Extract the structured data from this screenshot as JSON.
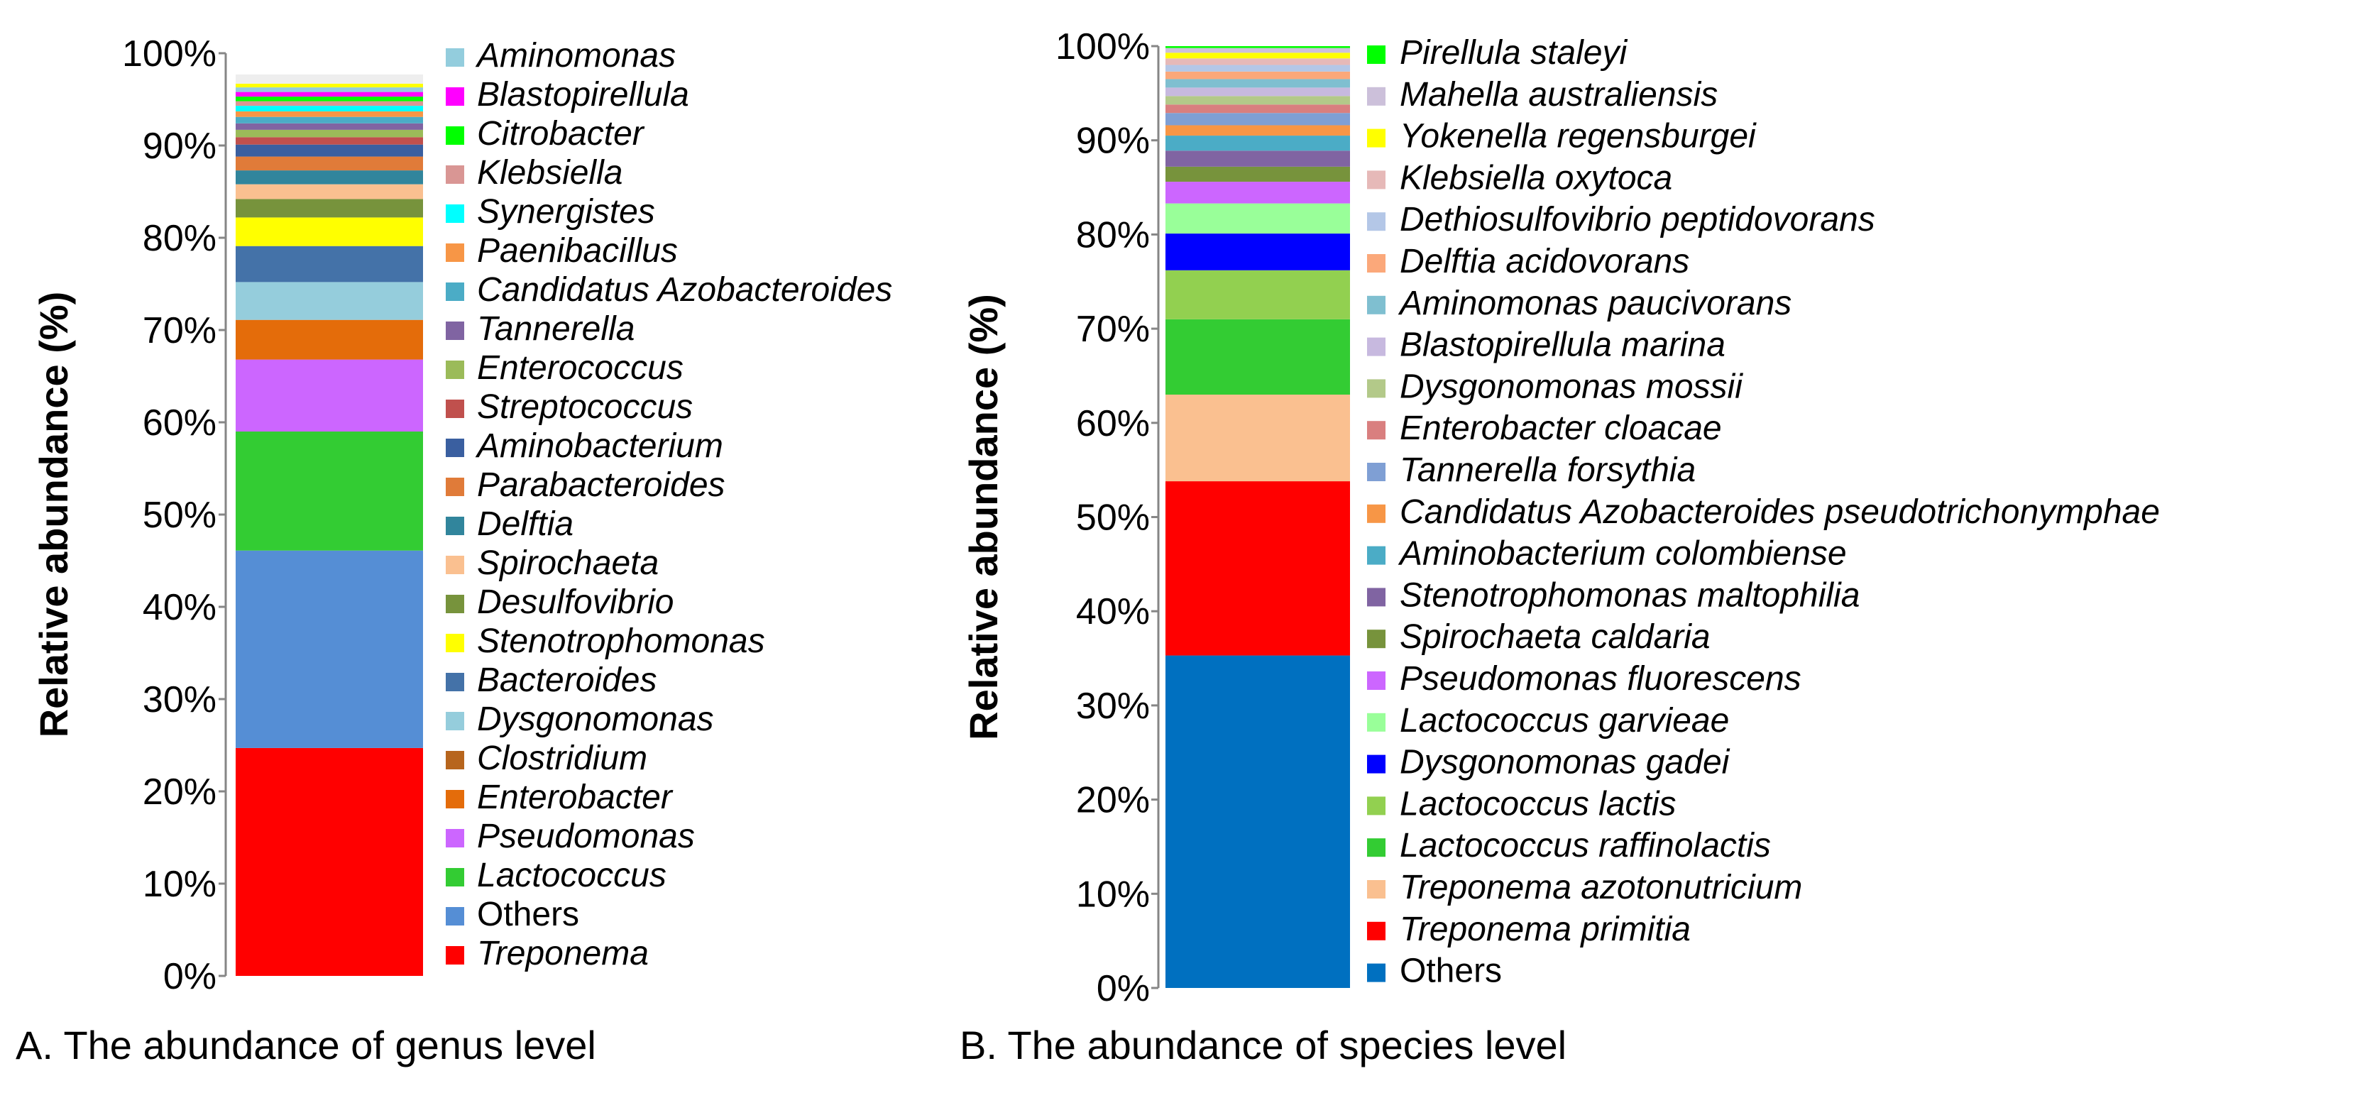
{
  "chart_data": [
    {
      "type": "bar",
      "stacked": true,
      "caption": "A. The abundance of genus level",
      "ylabel": "Relative abundance (%)",
      "ylim": [
        0,
        100
      ],
      "yticks": [
        "0%",
        "10%",
        "20%",
        "30%",
        "40%",
        "50%",
        "60%",
        "70%",
        "80%",
        "90%",
        "100%"
      ],
      "legend_position": "right",
      "series": [
        {
          "name": "Treponema",
          "value": 24.7,
          "color": "#ff0000",
          "italic": true
        },
        {
          "name": "Others",
          "value": 21.4,
          "color": "#558ed5",
          "italic": false
        },
        {
          "name": "Lactococcus",
          "value": 12.9,
          "color": "#33cc33",
          "italic": true
        },
        {
          "name": "Pseudomonas",
          "value": 7.8,
          "color": "#cc66ff",
          "italic": true
        },
        {
          "name": "Enterobacter",
          "value": 4.3,
          "color": "#e46c0a",
          "italic": true
        },
        {
          "name": "Clostridium",
          "value": 0.0,
          "color": "#b7651d",
          "italic": true
        },
        {
          "name": "Dysgonomonas",
          "value": 4.1,
          "color": "#95cddc",
          "italic": true
        },
        {
          "name": "Bacteroides",
          "value": 3.9,
          "color": "#4472a8",
          "italic": true
        },
        {
          "name": "Stenotrophomonas",
          "value": 3.1,
          "color": "#ffff00",
          "italic": true
        },
        {
          "name": "Desulfovibrio",
          "value": 2.0,
          "color": "#77933c",
          "italic": true
        },
        {
          "name": "Spirochaeta",
          "value": 1.6,
          "color": "#fac090",
          "italic": true
        },
        {
          "name": "Delftia",
          "value": 1.5,
          "color": "#31859c",
          "italic": true
        },
        {
          "name": "Parabacteroides",
          "value": 1.5,
          "color": "#e07b39",
          "italic": true
        },
        {
          "name": "Aminobacterium",
          "value": 1.3,
          "color": "#3a5fa0",
          "italic": true
        },
        {
          "name": "Streptococcus",
          "value": 0.8,
          "color": "#c0504d",
          "italic": true
        },
        {
          "name": "Enterococcus",
          "value": 0.8,
          "color": "#9bbb59",
          "italic": true
        },
        {
          "name": "Tannerella",
          "value": 0.7,
          "color": "#8064a2",
          "italic": true
        },
        {
          "name": "Candidatus Azobacteroides",
          "value": 0.7,
          "color": "#4bacc6",
          "italic": true
        },
        {
          "name": "Paenibacillus",
          "value": 0.6,
          "color": "#f79646",
          "italic": true
        },
        {
          "name": "Synergistes",
          "value": 0.6,
          "color": "#00ffff",
          "italic": true
        },
        {
          "name": "Klebsiella",
          "value": 0.5,
          "color": "#d99694",
          "italic": true
        },
        {
          "name": "Citrobacter",
          "value": 0.5,
          "color": "#00ff00",
          "italic": true
        },
        {
          "name": "Blastopirellula",
          "value": 0.5,
          "color": "#ff00ff",
          "italic": true
        },
        {
          "name": "Aminomonas",
          "value": 0.5,
          "color": "#93cddd",
          "italic": true
        },
        {
          "name": "",
          "value": 0.4,
          "color": "#ffff00",
          "italic": true
        },
        {
          "name": "",
          "value": 1.0,
          "color": "#eeeeee",
          "italic": true
        }
      ]
    },
    {
      "type": "bar",
      "stacked": true,
      "caption": "B. The abundance of species level",
      "ylabel": "Relative abundance (%)",
      "ylim": [
        0,
        100
      ],
      "yticks": [
        "0%",
        "10%",
        "20%",
        "30%",
        "40%",
        "50%",
        "60%",
        "70%",
        "80%",
        "90%",
        "100%"
      ],
      "legend_position": "right",
      "series": [
        {
          "name": "Others",
          "value": 35.3,
          "color": "#0070c0",
          "italic": false
        },
        {
          "name": "Treponema primitia",
          "value": 18.5,
          "color": "#ff0000",
          "italic": true
        },
        {
          "name": "Treponema azotonutricium",
          "value": 9.2,
          "color": "#fac090",
          "italic": true
        },
        {
          "name": "Lactococcus raffinolactis",
          "value": 8.0,
          "color": "#33cc33",
          "italic": true
        },
        {
          "name": "Lactococcus lactis",
          "value": 5.2,
          "color": "#92d050",
          "italic": true
        },
        {
          "name": "Dysgonomonas gadei",
          "value": 3.9,
          "color": "#0000ff",
          "italic": true
        },
        {
          "name": "Lactococcus garvieae",
          "value": 3.2,
          "color": "#99ff99",
          "italic": true
        },
        {
          "name": "Pseudomonas fluorescens",
          "value": 2.3,
          "color": "#cc66ff",
          "italic": true
        },
        {
          "name": "Spirochaeta caldaria",
          "value": 1.6,
          "color": "#77933c",
          "italic": true
        },
        {
          "name": "Stenotrophomonas maltophilia",
          "value": 1.7,
          "color": "#8064a2",
          "italic": true
        },
        {
          "name": "Aminobacterium colombiense",
          "value": 1.6,
          "color": "#4bacc6",
          "italic": true
        },
        {
          "name": "Candidatus Azobacteroides pseudotrichonymphae",
          "value": 1.1,
          "color": "#f79646",
          "italic": true
        },
        {
          "name": "Tannerella forsythia",
          "value": 1.3,
          "color": "#7f9fd4",
          "italic": true
        },
        {
          "name": "Enterobacter cloacae",
          "value": 0.9,
          "color": "#d97f7f",
          "italic": true
        },
        {
          "name": "Dysgonomonas mossii",
          "value": 0.9,
          "color": "#b3c989",
          "italic": true
        },
        {
          "name": "Blastopirellula marina",
          "value": 0.9,
          "color": "#c7b9df",
          "italic": true
        },
        {
          "name": "Aminomonas paucivorans",
          "value": 0.9,
          "color": "#7fbfd0",
          "italic": true
        },
        {
          "name": "Delftia acidovorans",
          "value": 0.8,
          "color": "#fba87a",
          "italic": true
        },
        {
          "name": "Dethiosulfovibrio peptidovorans",
          "value": 0.7,
          "color": "#b4c7e7",
          "italic": true
        },
        {
          "name": "Klebsiella oxytoca",
          "value": 0.7,
          "color": "#e6b9b8",
          "italic": true
        },
        {
          "name": "Yokenella regensburgei",
          "value": 0.6,
          "color": "#ffff00",
          "italic": true
        },
        {
          "name": "Mahella australiensis",
          "value": 0.5,
          "color": "#ccc0da",
          "italic": true
        },
        {
          "name": "Pirellula staleyi",
          "value": 0.2,
          "color": "#00ff00",
          "italic": true
        }
      ]
    }
  ]
}
